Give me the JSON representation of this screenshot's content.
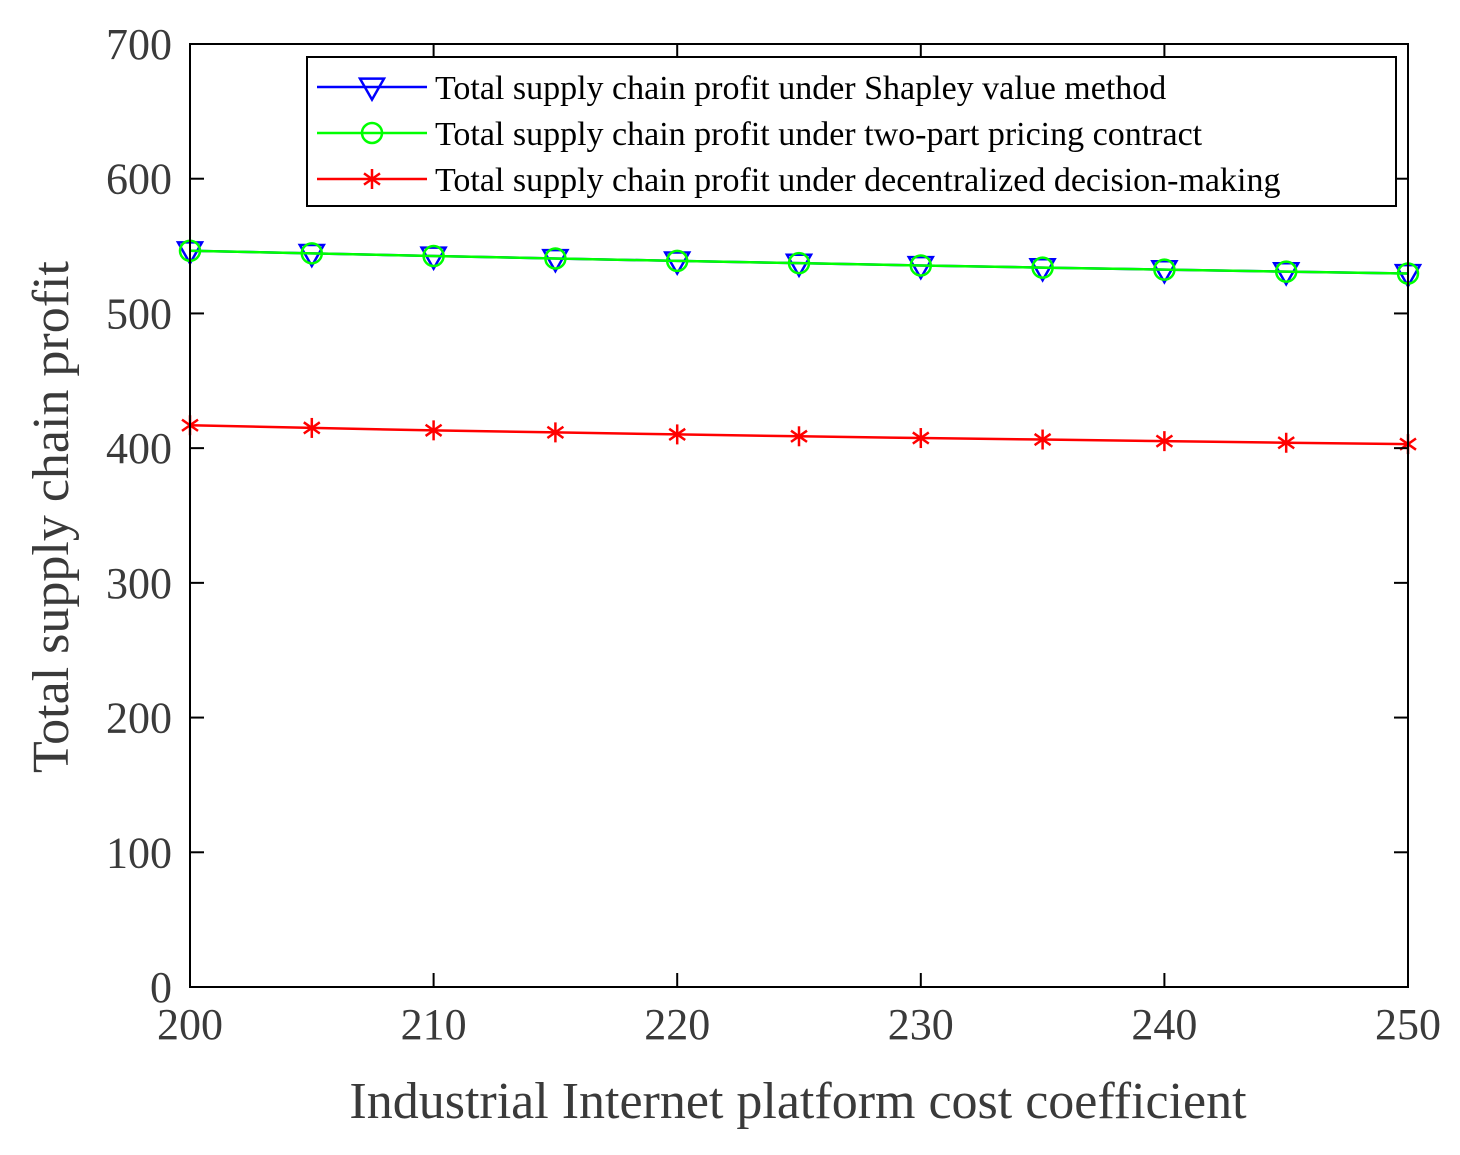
{
  "chart_data": {
    "type": "line",
    "xlabel": "Industrial Internet platform cost coefficient",
    "ylabel": "Total supply chain profit",
    "xlim": [
      200,
      250
    ],
    "ylim": [
      0,
      700
    ],
    "xticks": [
      200,
      210,
      220,
      230,
      240,
      250
    ],
    "yticks": [
      0,
      100,
      200,
      300,
      400,
      500,
      600,
      700
    ],
    "grid": false,
    "legend_position": "top-right",
    "x": [
      200,
      205,
      210,
      215,
      220,
      225,
      230,
      235,
      240,
      245,
      250
    ],
    "series": [
      {
        "name": "Total supply chain profit under Shapley value method",
        "color": "#0000ff",
        "marker": "triangle-down",
        "values": [
          546.5,
          544.6,
          542.6,
          540.8,
          539.0,
          537.3,
          535.6,
          534.0,
          532.5,
          531.0,
          529.6
        ]
      },
      {
        "name": "Total supply chain profit under two-part pricing contract",
        "color": "#00ff00",
        "marker": "circle",
        "values": [
          546.5,
          544.6,
          542.6,
          540.8,
          539.0,
          537.3,
          535.6,
          534.0,
          532.5,
          531.0,
          529.6
        ]
      },
      {
        "name": "Total supply chain profit under decentralized decision-making",
        "color": "#ff0000",
        "marker": "asterisk",
        "values": [
          417.0,
          415.0,
          413.2,
          411.7,
          410.2,
          408.8,
          407.5,
          406.4,
          405.2,
          404.0,
          403.0
        ]
      }
    ]
  }
}
